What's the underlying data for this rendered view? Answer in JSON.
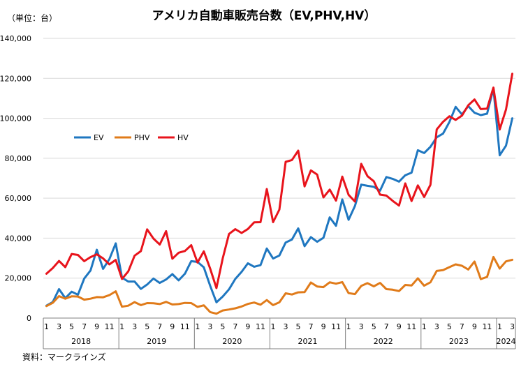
{
  "chart_data": {
    "type": "line",
    "title": "アメリカ自動車販売台数（EV,PHV,HV）",
    "unit_label": "（単位：台）",
    "source": "資料：マークラインズ",
    "ylim": [
      0,
      140000
    ],
    "y_ticks": [
      "0",
      "20,000",
      "40,000",
      "60,000",
      "80,000",
      "100,000",
      "120,000",
      "140,000"
    ],
    "y_tick_values": [
      0,
      20000,
      40000,
      60000,
      80000,
      100000,
      120000,
      140000
    ],
    "x_month_labels": [
      "1",
      "3",
      "5",
      "7",
      "9",
      "11"
    ],
    "x_month_labels_last": [
      "1",
      "3"
    ],
    "years": [
      "2018",
      "2019",
      "2020",
      "2021",
      "2022",
      "2023",
      "2024"
    ],
    "grid": "horizontal",
    "legend_placement": "middle-left",
    "series": [
      {
        "name": "EV",
        "color": "#1f77c0",
        "values": [
          6200,
          8000,
          14500,
          10000,
          13200,
          11700,
          19800,
          23800,
          34200,
          24600,
          29500,
          37400,
          20200,
          18300,
          18300,
          14600,
          16800,
          19800,
          17600,
          19300,
          22000,
          18900,
          22200,
          28500,
          28100,
          25400,
          16200,
          7900,
          10800,
          14400,
          19600,
          23100,
          27400,
          25700,
          26500,
          34800,
          29800,
          31300,
          37800,
          39300,
          44900,
          36000,
          40500,
          38200,
          40200,
          50400,
          46200,
          59400,
          49200,
          56100,
          66800,
          66200,
          65700,
          63800,
          70600,
          69700,
          68300,
          71500,
          72800,
          84000,
          82600,
          85700,
          90500,
          92300,
          98100,
          105700,
          101900,
          106100,
          102800,
          101600,
          102300,
          114900,
          81500,
          86300,
          100000
        ]
      },
      {
        "name": "PHV",
        "color": "#e07b1a",
        "values": [
          6000,
          7600,
          11000,
          9700,
          10900,
          10800,
          9200,
          9700,
          10500,
          10400,
          11500,
          13400,
          5700,
          6200,
          8000,
          6500,
          7500,
          7400,
          7000,
          8100,
          6800,
          7000,
          7600,
          7500,
          5600,
          6400,
          3000,
          2200,
          3800,
          4300,
          4900,
          5800,
          7100,
          7800,
          6700,
          9000,
          6500,
          7900,
          12400,
          11800,
          12900,
          13000,
          17800,
          15800,
          15500,
          17900,
          17200,
          18000,
          12500,
          12000,
          16100,
          17500,
          15900,
          17600,
          14500,
          14200,
          13500,
          16600,
          16300,
          19900,
          16200,
          17900,
          23600,
          24000,
          25500,
          26900,
          26200,
          24300,
          28300,
          19500,
          20600,
          30600,
          24800,
          28400,
          29200
        ]
      },
      {
        "name": "HV",
        "color": "#e8141c",
        "values": [
          22200,
          25000,
          28600,
          25500,
          32100,
          31600,
          28500,
          30500,
          31900,
          29900,
          26900,
          29100,
          19600,
          23400,
          31200,
          33500,
          44400,
          39800,
          36800,
          43500,
          29700,
          32700,
          33600,
          36500,
          27800,
          33400,
          24800,
          15000,
          29900,
          42100,
          44500,
          42600,
          44600,
          47900,
          48000,
          64600,
          48000,
          54300,
          78200,
          79100,
          83800,
          65900,
          73900,
          71800,
          60400,
          64300,
          58800,
          70800,
          61700,
          58300,
          77200,
          71000,
          68500,
          61800,
          61300,
          58700,
          56300,
          67400,
          58600,
          66400,
          60600,
          66700,
          94400,
          98200,
          101000,
          99200,
          101300,
          106500,
          109400,
          104600,
          104800,
          115400,
          94400,
          104400,
          122300
        ]
      }
    ]
  }
}
